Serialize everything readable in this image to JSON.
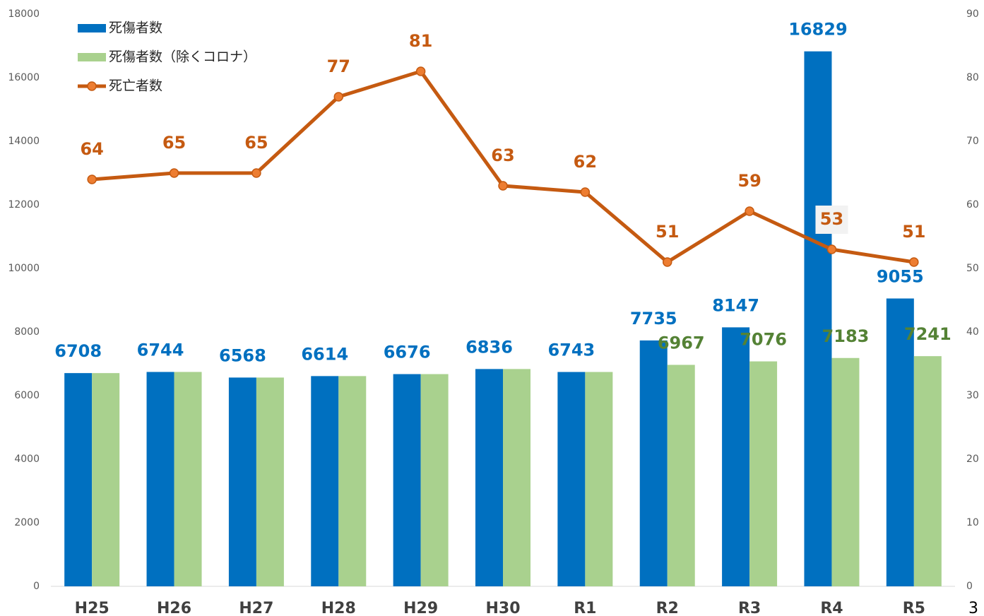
{
  "chart_data": {
    "type": "bar_line",
    "categories": [
      "H25",
      "H26",
      "H27",
      "H28",
      "H29",
      "H30",
      "R1",
      "R2",
      "R3",
      "R4",
      "R5"
    ],
    "series": [
      {
        "name": "死傷者数",
        "type": "bar",
        "color": "#0070c0",
        "label_color": "#0070c0",
        "values": [
          6708,
          6744,
          6568,
          6614,
          6676,
          6836,
          6743,
          7735,
          8147,
          16829,
          9055
        ]
      },
      {
        "name": "死傷者数（除くコロナ）",
        "type": "bar",
        "color": "#a9d18e",
        "label_color": "#548235",
        "values": [
          6708,
          6744,
          6568,
          6614,
          6676,
          6836,
          6743,
          6967,
          7076,
          7183,
          7241
        ],
        "value_labels": [
          null,
          null,
          null,
          null,
          null,
          null,
          null,
          "6967",
          "7076",
          "7183",
          "7241"
        ]
      },
      {
        "name": "死亡者数",
        "type": "line",
        "axis": "y2",
        "color": "#c55a11",
        "marker_color": "#ed7d31",
        "label_color": "#c55a11",
        "values": [
          64,
          65,
          65,
          77,
          81,
          63,
          62,
          51,
          59,
          53,
          51
        ]
      }
    ],
    "ylim": [
      0,
      18000
    ],
    "yticks": [
      0,
      2000,
      4000,
      6000,
      8000,
      10000,
      12000,
      14000,
      16000,
      18000
    ],
    "y2lim": [
      0,
      90
    ],
    "y2ticks": [
      0,
      10,
      20,
      30,
      40,
      50,
      60,
      70,
      80,
      90
    ],
    "legend": "top-left"
  },
  "page_number": 3
}
